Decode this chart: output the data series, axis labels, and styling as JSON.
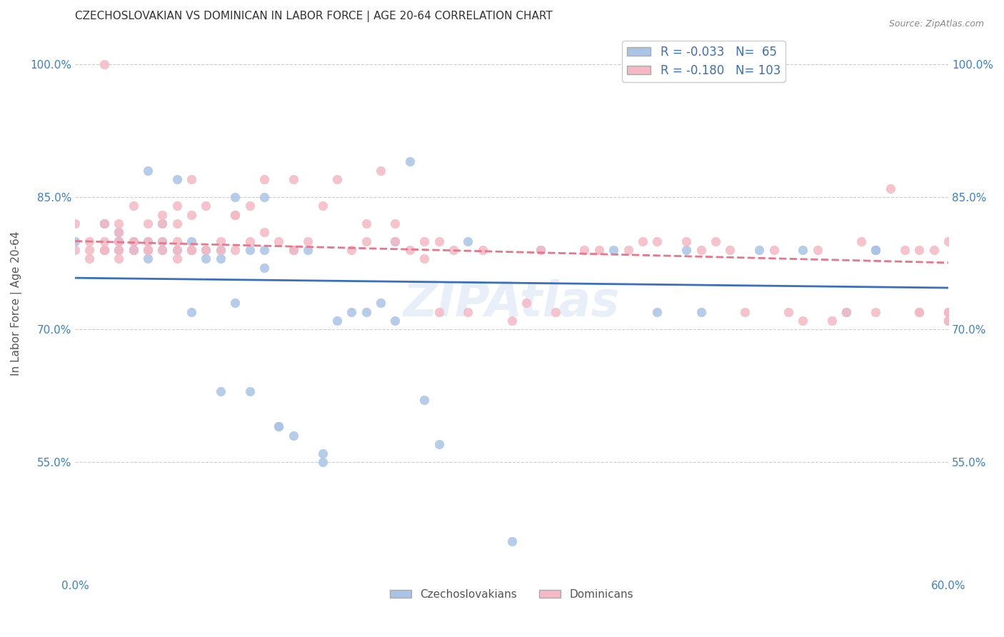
{
  "title": "CZECHOSLOVAKIAN VS DOMINICAN IN LABOR FORCE | AGE 20-64 CORRELATION CHART",
  "source": "Source: ZipAtlas.com",
  "ylabel": "In Labor Force | Age 20-64",
  "yticks": [
    1.0,
    0.85,
    0.7,
    0.55
  ],
  "ytick_labels": [
    "100.0%",
    "85.0%",
    "70.0%",
    "55.0%"
  ],
  "watermark": "ZIPAtlas",
  "blue_color": "#aac4e8",
  "pink_color": "#f5b8c4",
  "blue_line_color": "#3a6fbe",
  "pink_line_color": "#e8758a",
  "R_czech": -0.033,
  "N_czech": 65,
  "R_dominican": -0.18,
  "N_dominican": 103,
  "xmin": 0.0,
  "xmax": 0.6,
  "ymin": 0.42,
  "ymax": 1.04,
  "czech_x": [
    0.0,
    0.02,
    0.02,
    0.02,
    0.03,
    0.03,
    0.03,
    0.03,
    0.03,
    0.04,
    0.04,
    0.04,
    0.05,
    0.05,
    0.05,
    0.05,
    0.06,
    0.06,
    0.06,
    0.07,
    0.07,
    0.08,
    0.08,
    0.08,
    0.09,
    0.09,
    0.1,
    0.1,
    0.1,
    0.11,
    0.11,
    0.12,
    0.12,
    0.13,
    0.13,
    0.13,
    0.14,
    0.14,
    0.15,
    0.15,
    0.16,
    0.17,
    0.17,
    0.18,
    0.19,
    0.2,
    0.21,
    0.22,
    0.22,
    0.23,
    0.24,
    0.25,
    0.27,
    0.3,
    0.32,
    0.37,
    0.4,
    0.42,
    0.43,
    0.47,
    0.5,
    0.53,
    0.55,
    0.55,
    0.55
  ],
  "czech_y": [
    0.8,
    0.79,
    0.82,
    0.82,
    0.8,
    0.81,
    0.8,
    0.79,
    0.81,
    0.79,
    0.8,
    0.79,
    0.8,
    0.78,
    0.79,
    0.88,
    0.8,
    0.82,
    0.79,
    0.87,
    0.79,
    0.72,
    0.8,
    0.79,
    0.79,
    0.78,
    0.63,
    0.79,
    0.78,
    0.73,
    0.85,
    0.63,
    0.79,
    0.85,
    0.79,
    0.77,
    0.59,
    0.59,
    0.79,
    0.58,
    0.79,
    0.55,
    0.56,
    0.71,
    0.72,
    0.72,
    0.73,
    0.8,
    0.71,
    0.89,
    0.62,
    0.57,
    0.8,
    0.46,
    0.79,
    0.79,
    0.72,
    0.79,
    0.72,
    0.79,
    0.79,
    0.72,
    0.79,
    0.79,
    0.79
  ],
  "dominican_x": [
    0.0,
    0.0,
    0.01,
    0.01,
    0.01,
    0.02,
    0.02,
    0.02,
    0.02,
    0.02,
    0.03,
    0.03,
    0.03,
    0.03,
    0.03,
    0.04,
    0.04,
    0.04,
    0.05,
    0.05,
    0.05,
    0.05,
    0.06,
    0.06,
    0.06,
    0.06,
    0.07,
    0.07,
    0.07,
    0.07,
    0.07,
    0.08,
    0.08,
    0.08,
    0.08,
    0.09,
    0.09,
    0.1,
    0.1,
    0.11,
    0.11,
    0.11,
    0.12,
    0.12,
    0.13,
    0.13,
    0.14,
    0.15,
    0.15,
    0.16,
    0.17,
    0.18,
    0.19,
    0.2,
    0.2,
    0.21,
    0.22,
    0.22,
    0.23,
    0.24,
    0.24,
    0.25,
    0.25,
    0.26,
    0.27,
    0.28,
    0.3,
    0.31,
    0.32,
    0.33,
    0.35,
    0.36,
    0.38,
    0.39,
    0.4,
    0.42,
    0.43,
    0.44,
    0.45,
    0.46,
    0.48,
    0.49,
    0.5,
    0.51,
    0.52,
    0.53,
    0.54,
    0.55,
    0.56,
    0.57,
    0.58,
    0.58,
    0.58,
    0.59,
    0.6,
    0.6,
    0.6,
    0.6,
    0.6,
    0.6,
    0.6,
    0.6,
    0.6
  ],
  "dominican_y": [
    0.82,
    0.79,
    0.79,
    0.8,
    0.78,
    0.82,
    0.79,
    0.8,
    0.79,
    1.0,
    0.79,
    0.78,
    0.8,
    0.82,
    0.81,
    0.79,
    0.8,
    0.84,
    0.79,
    0.79,
    0.8,
    0.82,
    0.8,
    0.79,
    0.82,
    0.83,
    0.79,
    0.8,
    0.82,
    0.84,
    0.78,
    0.79,
    0.87,
    0.79,
    0.83,
    0.79,
    0.84,
    0.79,
    0.8,
    0.83,
    0.83,
    0.79,
    0.84,
    0.8,
    0.81,
    0.87,
    0.8,
    0.79,
    0.87,
    0.8,
    0.84,
    0.87,
    0.79,
    0.82,
    0.8,
    0.88,
    0.8,
    0.82,
    0.79,
    0.8,
    0.78,
    0.72,
    0.8,
    0.79,
    0.72,
    0.79,
    0.71,
    0.73,
    0.79,
    0.72,
    0.79,
    0.79,
    0.79,
    0.8,
    0.8,
    0.8,
    0.79,
    0.8,
    0.79,
    0.72,
    0.79,
    0.72,
    0.71,
    0.79,
    0.71,
    0.72,
    0.8,
    0.72,
    0.86,
    0.79,
    0.72,
    0.72,
    0.79,
    0.79,
    0.72,
    0.8,
    0.72,
    0.72,
    0.71,
    0.71,
    0.71,
    0.71,
    0.71
  ]
}
